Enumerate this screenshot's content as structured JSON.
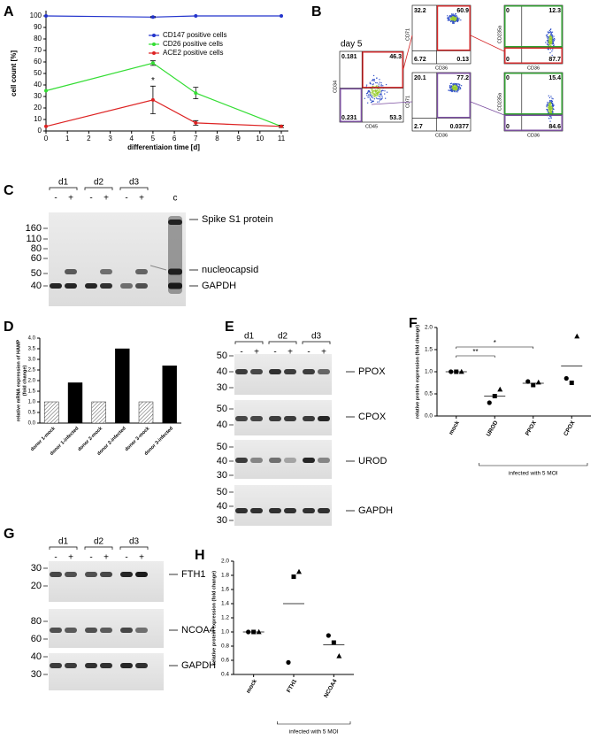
{
  "chart_data": [
    {
      "type": "line",
      "panel": "A",
      "y_label": "cell count [%]",
      "x_label": "differentiaion time [d]",
      "x": [
        0,
        5,
        7,
        11
      ],
      "xlim": [
        0,
        11
      ],
      "xticks": [
        0,
        1,
        2,
        3,
        4,
        5,
        6,
        7,
        8,
        9,
        10,
        11
      ],
      "ylim": [
        0,
        100
      ],
      "yticks": [
        0,
        10,
        20,
        30,
        40,
        50,
        60,
        70,
        80,
        90,
        100
      ],
      "legend": "upper right",
      "annotation": "*",
      "series": [
        {
          "name": "CD147 positive cells",
          "color": "#2233cc",
          "values": [
            100,
            99,
            100,
            100
          ],
          "errors": [
            0,
            0.5,
            0,
            0
          ]
        },
        {
          "name": "CD26 positive cells",
          "color": "#33dd33",
          "values": [
            35,
            59,
            33,
            4
          ],
          "errors": [
            0,
            2,
            5,
            1
          ]
        },
        {
          "name": "ACE2 positive cells",
          "color": "#dd2222",
          "values": [
            4,
            27,
            7,
            4
          ],
          "errors": [
            0,
            12,
            2,
            1
          ]
        }
      ]
    },
    {
      "type": "bar",
      "panel": "D",
      "y_label": [
        "relative mRNA expression of HAMP",
        "(fold change)"
      ],
      "categories": [
        "donor 1-mock",
        "donor 1-infected",
        "donor 2-mock",
        "donor 2-infected",
        "donor 3-mock",
        "donor 3-infected"
      ],
      "values": [
        1,
        1.9,
        1,
        3.5,
        1,
        2.7
      ],
      "colors": [
        "#ffffff",
        "#000000",
        "#ffffff",
        "#000000",
        "#ffffff",
        "#000000"
      ],
      "hatch": [
        true,
        false,
        true,
        false,
        true,
        false
      ],
      "ylim": [
        0,
        4
      ],
      "yticks": [
        {
          "value": 0,
          "label": "0.0"
        },
        0.5,
        {
          "value": 1,
          "label": "1.0"
        },
        1.5,
        {
          "value": 2,
          "label": "2.0"
        },
        2.5,
        {
          "value": 3,
          "label": "3.0"
        },
        3.5,
        {
          "value": 4,
          "label": "4.0"
        }
      ]
    },
    {
      "type": "dot",
      "panel": "F",
      "y_label": "relative protein expression (fold change)",
      "categories": [
        "mock",
        "UROD",
        "PPOX",
        "CPOX"
      ],
      "markers": [
        "circle",
        "square",
        "triangle"
      ],
      "points": [
        [
          1,
          1,
          1
        ],
        [
          0.3,
          0.45,
          0.6
        ],
        [
          0.78,
          0.7,
          0.76
        ],
        [
          0.85,
          0.75,
          1.8
        ]
      ],
      "means": [
        1,
        0.45,
        0.74,
        1.13
      ],
      "ylim": [
        0,
        2
      ],
      "yticks": [
        {
          "value": 0,
          "label": "0.0"
        },
        0.5,
        {
          "value": 1,
          "label": "1.0"
        },
        1.5,
        {
          "value": 2,
          "label": "2.0"
        }
      ],
      "significance": [
        {
          "text": "**",
          "pair": [
            "mock",
            "UROD"
          ]
        },
        {
          "text": "*",
          "pair": [
            "mock",
            "PPOX"
          ]
        }
      ],
      "group_label": "infected with 5 MOI"
    },
    {
      "type": "dot",
      "panel": "H",
      "y_label": "relative protein expression (fold change)",
      "categories": [
        "mock",
        "FTH1",
        "NCOA4"
      ],
      "markers": [
        "circle",
        "square",
        "triangle"
      ],
      "points": [
        [
          1,
          1,
          1
        ],
        [
          0.57,
          1.78,
          1.85
        ],
        [
          0.95,
          0.85,
          0.66
        ]
      ],
      "means": [
        1,
        1.4,
        0.82
      ],
      "ylim": [
        0.4,
        2
      ],
      "yticks": [
        0.4,
        0.6,
        0.8,
        {
          "value": 1,
          "label": "1.0"
        },
        1.2,
        1.4,
        1.6,
        1.8,
        {
          "value": 2,
          "label": "2.0"
        }
      ],
      "significance": [],
      "group_label": "infected with 5 MOI"
    }
  ],
  "flow": {
    "panel": "B",
    "title": "day 5",
    "plots": [
      {
        "x_label": "CD45",
        "y_label": "CD34",
        "quadrants": [
          0.181,
          46.3,
          0.231,
          53.3
        ]
      },
      {
        "x_label": "CD36",
        "y_label": "CD71",
        "quadrants": [
          32.2,
          60.9,
          6.72,
          0.13
        ]
      },
      {
        "x_label": "CD36",
        "y_label": "CD235a",
        "quadrants": [
          0,
          12.3,
          0,
          87.7
        ]
      },
      {
        "x_label": "CD36",
        "y_label": "CD71",
        "quadrants": [
          20.1,
          77.2,
          2.7,
          0.0377
        ]
      },
      {
        "x_label": "CD36",
        "y_label": "CD235a",
        "quadrants": [
          0,
          15.4,
          0,
          84.6
        ]
      }
    ]
  },
  "blots": [
    {
      "panel": "C",
      "donors": [
        "d1",
        "d2",
        "d3"
      ],
      "lanes": [
        "-",
        "+"
      ],
      "control": "c",
      "strips": [
        {
          "markers": [
            160,
            110,
            80,
            60,
            50,
            40
          ],
          "labels": [
            "Spike S1 protein",
            "nucleocapsid",
            "GAPDH"
          ]
        }
      ]
    },
    {
      "panel": "E",
      "donors": [
        "d1",
        "d2",
        "d3"
      ],
      "lanes": [
        "-",
        "+"
      ],
      "strips": [
        {
          "markers": [
            50,
            40,
            30
          ],
          "labels": [
            "PPOX"
          ]
        },
        {
          "markers": [
            50,
            40
          ],
          "labels": [
            "CPOX"
          ]
        },
        {
          "markers": [
            50,
            40,
            30
          ],
          "labels": [
            "UROD"
          ]
        },
        {
          "markers": [
            50,
            40,
            30
          ],
          "labels": [
            "GAPDH"
          ]
        }
      ]
    },
    {
      "panel": "G",
      "donors": [
        "d1",
        "d2",
        "d3"
      ],
      "lanes": [
        "-",
        "+"
      ],
      "strips": [
        {
          "markers": [
            30,
            20
          ],
          "labels": [
            "FTH1"
          ]
        },
        {
          "markers": [
            80,
            60
          ],
          "labels": [
            "NCOA4"
          ]
        },
        {
          "markers": [
            40,
            30
          ],
          "labels": [
            "GAPDH"
          ]
        }
      ]
    }
  ]
}
